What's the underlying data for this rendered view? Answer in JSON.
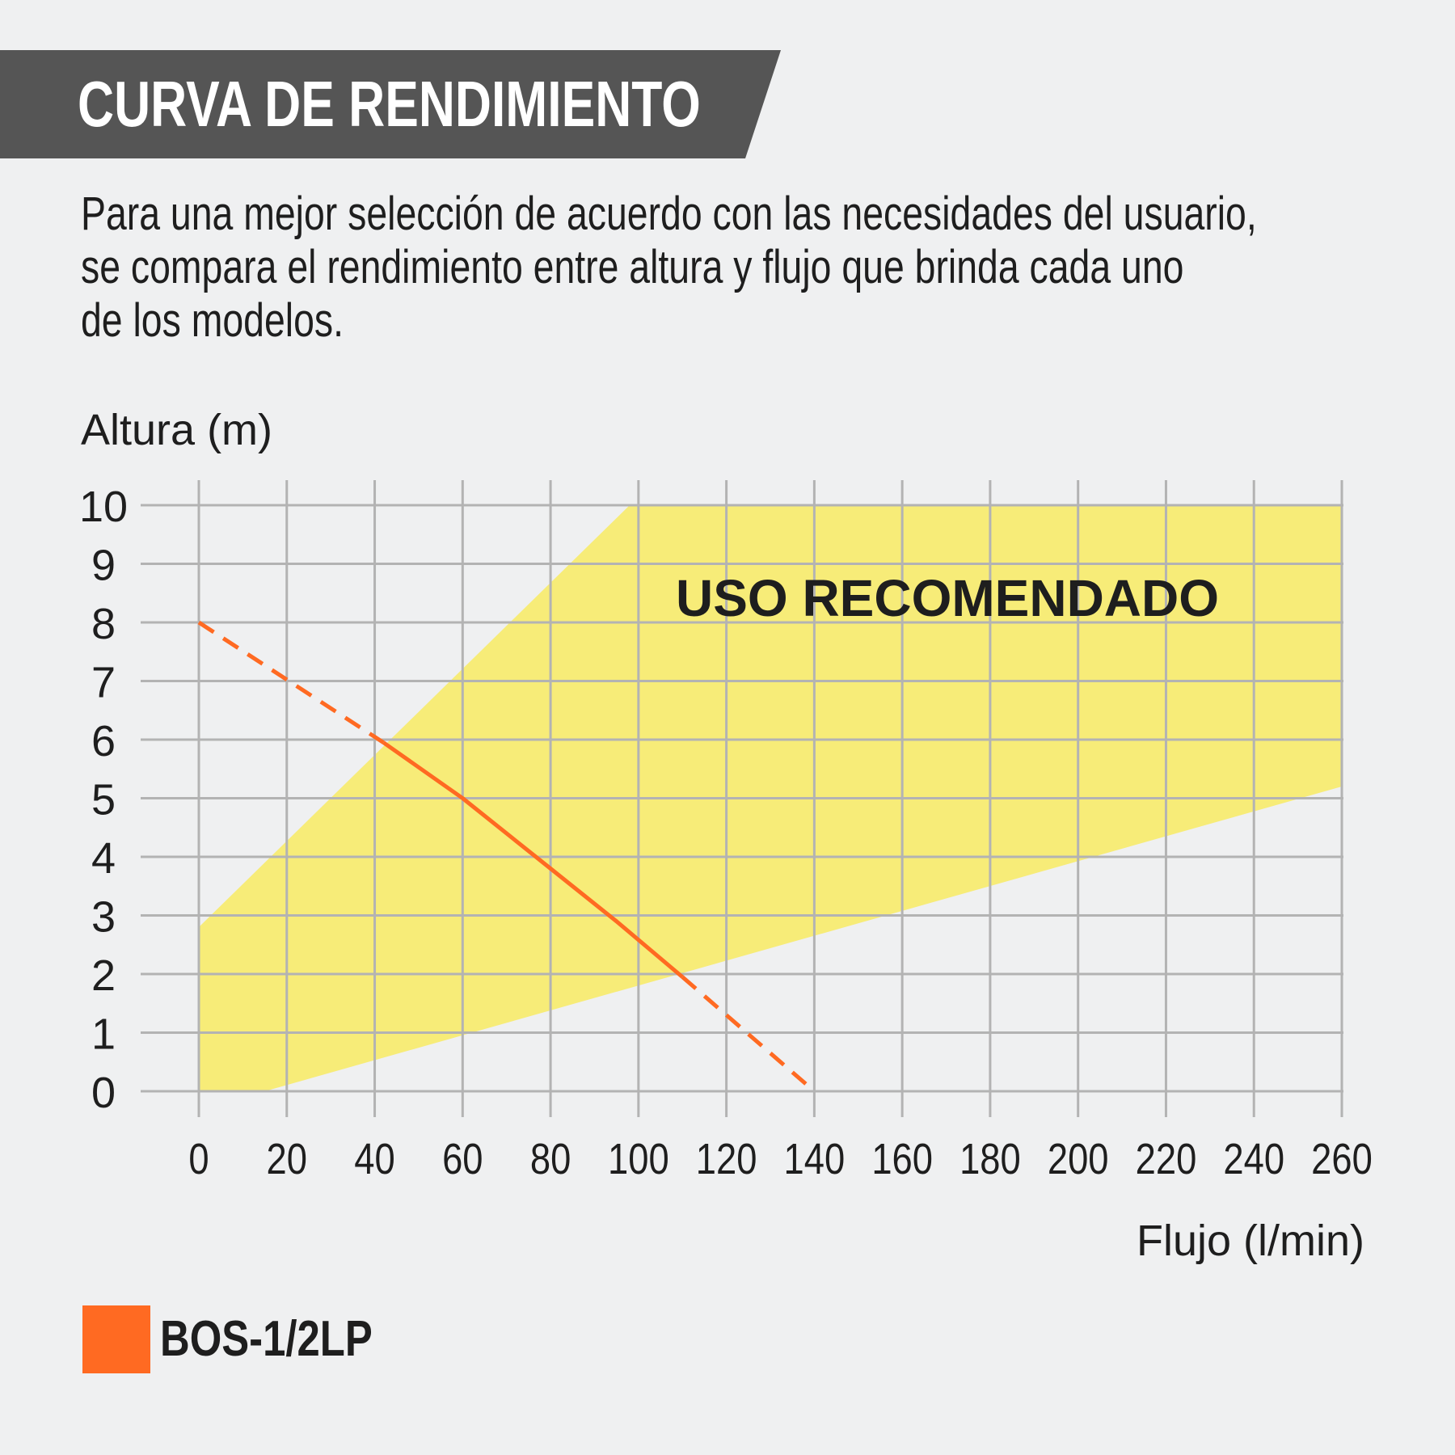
{
  "header": {
    "title": "CURVA DE RENDIMIENTO",
    "bg_color": "#555555"
  },
  "description": {
    "lines": [
      "Para una mejor selección de acuerdo con las necesidades del usuario,",
      "se compara el rendimiento entre altura y flujo que brinda cada uno",
      "de los modelos."
    ]
  },
  "chart_data": {
    "type": "line",
    "xlabel": "Flujo (l/min)",
    "ylabel": "Altura (m)",
    "xlim": [
      0,
      260
    ],
    "ylim": [
      0,
      10
    ],
    "x_ticks": [
      "0",
      "20",
      "40",
      "60",
      "80",
      "100",
      "120",
      "140",
      "160",
      "180",
      "200",
      "220",
      "240",
      "260"
    ],
    "y_ticks": [
      "0",
      "1",
      "2",
      "3",
      "4",
      "5",
      "6",
      "7",
      "8",
      "9",
      "10"
    ],
    "grid": true,
    "recommended_region": {
      "label": "USO RECOMENDADO",
      "color": "#f7ec78",
      "polygon": [
        [
          0,
          0
        ],
        [
          15,
          0
        ],
        [
          260,
          5.2
        ],
        [
          260,
          10
        ],
        [
          98,
          10
        ],
        [
          0,
          2.8
        ]
      ]
    },
    "series": [
      {
        "name": "BOS-1/2LP",
        "color": "#ff6a22",
        "solid": [
          [
            42,
            5.95
          ],
          [
            60,
            5.0
          ],
          [
            80,
            3.8
          ],
          [
            95,
            2.9
          ],
          [
            110,
            1.95
          ]
        ],
        "dashed_start": [
          [
            0,
            8.0
          ],
          [
            42,
            5.95
          ]
        ],
        "dashed_end": [
          [
            110,
            1.95
          ],
          [
            140,
            0
          ]
        ]
      }
    ],
    "legend": {
      "placement": "bottom-left",
      "entries": [
        {
          "label": "BOS-1/2LP",
          "color": "#ff6a22"
        }
      ]
    }
  }
}
